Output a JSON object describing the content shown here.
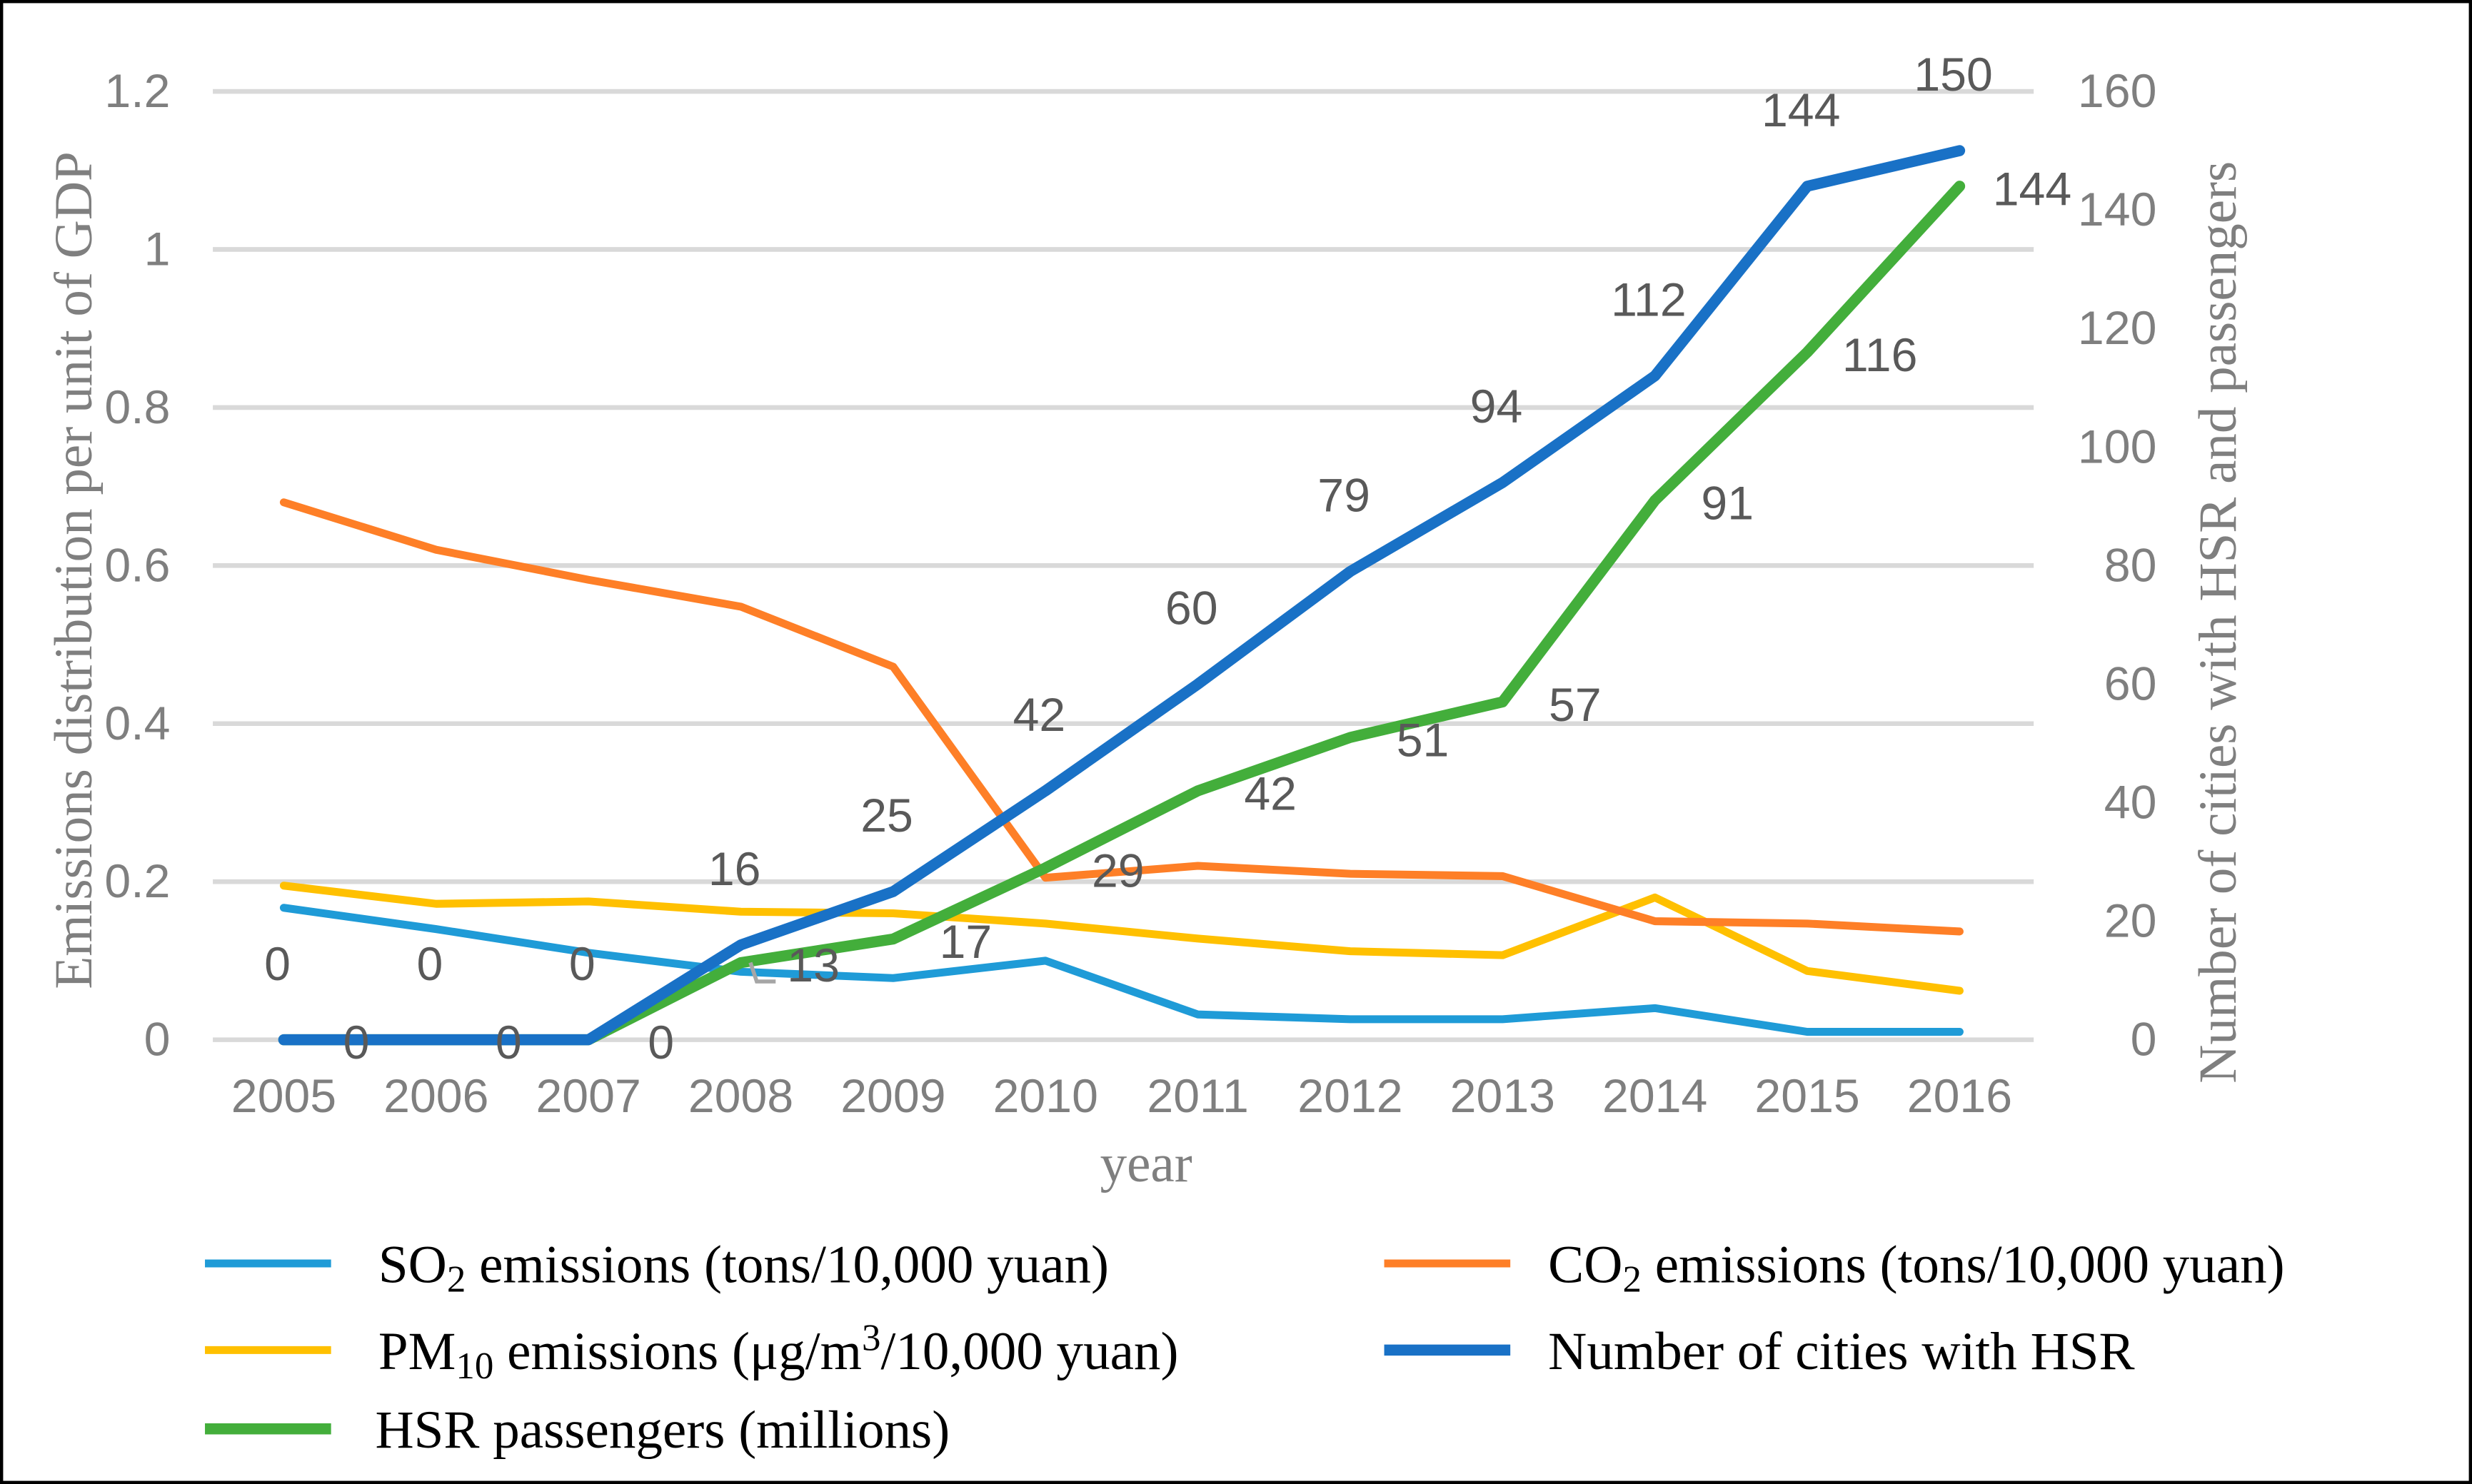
{
  "chart_data": {
    "type": "line",
    "x": [
      "2005",
      "2006",
      "2007",
      "2008",
      "2009",
      "2010",
      "2011",
      "2012",
      "2013",
      "2014",
      "2015",
      "2016"
    ],
    "xlabel": "year",
    "ylabel": "Emissions distribution per unit of GDP",
    "y2label": "Number of cities with HSR and passengers",
    "ylim": [
      0,
      1.2
    ],
    "y2lim": [
      0,
      160
    ],
    "yticks": [
      "0",
      "0.2",
      "0.4",
      "0.6",
      "0.8",
      "1",
      "1.2"
    ],
    "y2ticks": [
      "0",
      "20",
      "40",
      "60",
      "80",
      "100",
      "120",
      "140",
      "160"
    ],
    "grid": true,
    "legend_placement": "bottom",
    "series": [
      {
        "name": "SO2 emissions (tons/10,000 yuan)",
        "legend": {
          "pre": "SO",
          "sub": "2",
          "post": " emissions (tons/10,000 yuan)"
        },
        "axis": "left",
        "color": "#1f9bd7",
        "values": [
          0.167,
          0.14,
          0.11,
          0.086,
          0.078,
          0.1,
          0.032,
          0.026,
          0.026,
          0.04,
          0.01,
          0.01
        ]
      },
      {
        "name": "CO2 emissions (tons/10,000 yuan)",
        "legend": {
          "pre": "CO",
          "sub": "2",
          "post": " emissions (tons/10,000 yuan)"
        },
        "axis": "left",
        "color": "#fe7f27",
        "values": [
          0.68,
          0.62,
          0.582,
          0.548,
          0.472,
          0.205,
          0.22,
          0.21,
          0.207,
          0.15,
          0.147,
          0.137
        ]
      },
      {
        "name": "PM10 emissions (μg/m3/10,000 yuan)",
        "legend": {
          "pre": "PM",
          "sub": "10",
          "mid": " emissions (μg/m",
          "sup": "3",
          "post": "/10,000 yuan)"
        },
        "axis": "left",
        "color": "#ffc000",
        "values": [
          0.195,
          0.172,
          0.175,
          0.162,
          0.16,
          0.147,
          0.128,
          0.112,
          0.107,
          0.18,
          0.087,
          0.062
        ]
      },
      {
        "name": "Number of cities with HSR",
        "legend": {
          "pre": "Number of cities with HSR"
        },
        "axis": "right",
        "color": "#1971c6",
        "values": [
          0,
          0,
          0,
          16,
          25,
          42,
          60,
          79,
          94,
          112,
          144,
          150
        ],
        "labels": [
          "0",
          "0",
          "0",
          "16",
          "25",
          "42",
          "60",
          "79",
          "94",
          "112",
          "144",
          "150"
        ]
      },
      {
        "name": "HSR passengers (millions)",
        "legend": {
          "pre": "HSR passengers (millions)"
        },
        "axis": "right",
        "color": "#43ae3b",
        "values": [
          0,
          0,
          0,
          13,
          17,
          29,
          42,
          51,
          57,
          91,
          116,
          144
        ],
        "labels": [
          "0",
          "0",
          "0",
          "13",
          "17",
          "29",
          "42",
          "51",
          "57",
          "91",
          "116",
          "144"
        ]
      }
    ]
  }
}
